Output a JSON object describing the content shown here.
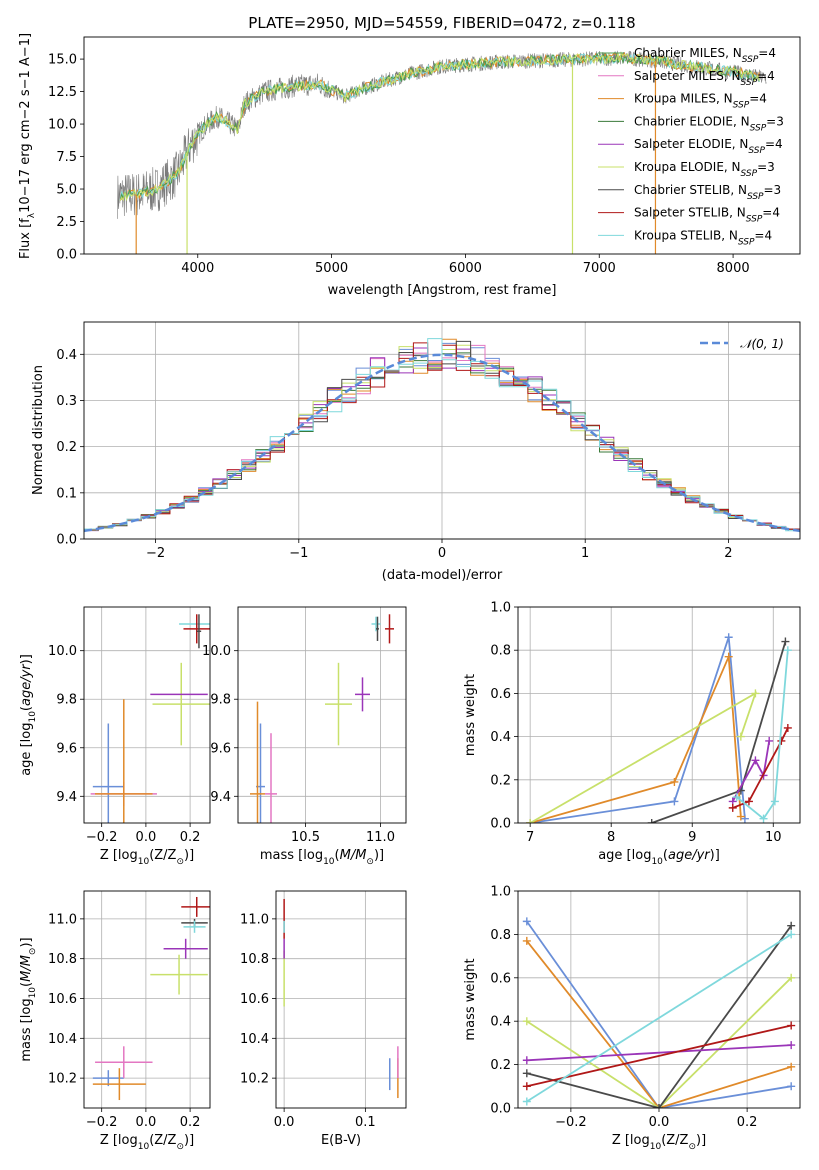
{
  "colors": {
    "Chabrier MILES": "#4c9b4c",
    "Salpeter MILES": "#e377c2",
    "Kroupa MILES": "#e08a2a",
    "Chabrier ELODIE": "#3a7a3a",
    "Salpeter ELODIE": "#9a35b8",
    "Kroupa ELODIE": "#c8e06a",
    "Chabrier STELIB": "#4a4a4a",
    "Salpeter STELIB": "#b01818",
    "Kroupa STELIB": "#7fd8dc",
    "blue": "#6a8fd8",
    "gaussian": "#5a8ad8",
    "spectrum": "#7a7a7a"
  },
  "chart_data": [
    {
      "id": "spectrum",
      "type": "line",
      "title": "PLATE=2950, MJD=54559, FIBERID=0472, z=0.118",
      "xlabel": "wavelength [Angstrom, rest frame]",
      "ylabel": "Flux [f$_\\lambda$10$^{-17}$ erg cm$^{-2}$ s$^{-1}$ A$^{-1}$]",
      "xlim": [
        3150,
        8500
      ],
      "ylim": [
        0,
        16.7
      ],
      "xticks": [
        "4000",
        "5000",
        "6000",
        "7000",
        "8000"
      ],
      "yticks": [
        "0.0",
        "2.5",
        "5.0",
        "7.5",
        "10.0",
        "12.5",
        "15.0"
      ],
      "continuum": [
        [
          3400,
          4.5
        ],
        [
          3550,
          4.6
        ],
        [
          3700,
          5.0
        ],
        [
          3850,
          6.2
        ],
        [
          3950,
          8.5
        ],
        [
          4050,
          9.8
        ],
        [
          4150,
          10.6
        ],
        [
          4300,
          9.6
        ],
        [
          4350,
          11.6
        ],
        [
          4500,
          12.5
        ],
        [
          4700,
          12.9
        ],
        [
          4900,
          13.1
        ],
        [
          5100,
          12.1
        ],
        [
          5200,
          12.6
        ],
        [
          5400,
          13.3
        ],
        [
          5600,
          13.9
        ],
        [
          5800,
          14.4
        ],
        [
          6000,
          14.6
        ],
        [
          6300,
          14.8
        ],
        [
          6600,
          14.9
        ],
        [
          6900,
          15.0
        ],
        [
          7200,
          15.1
        ],
        [
          7400,
          14.9
        ],
        [
          7600,
          14.6
        ],
        [
          7800,
          14.3
        ],
        [
          8000,
          14.0
        ],
        [
          8250,
          13.5
        ]
      ],
      "legend": [
        {
          "label": "Chabrier MILES, N$_{SSP}$=4",
          "text_a": "Chabrier MILES, N",
          "sub": "SSP",
          "text_b": "=4"
        },
        {
          "label": "Salpeter MILES, N$_{SSP}$=4",
          "text_a": "Salpeter MILES, N",
          "sub": "SSP",
          "text_b": "=4"
        },
        {
          "label": "Kroupa MILES, N$_{SSP}$=4",
          "text_a": "Kroupa MILES, N",
          "sub": "SSP",
          "text_b": "=4"
        },
        {
          "label": "Chabrier ELODIE, N$_{SSP}$=3",
          "text_a": "Chabrier ELODIE, N",
          "sub": "SSP",
          "text_b": "=3"
        },
        {
          "label": "Salpeter ELODIE, N$_{SSP}$=4",
          "text_a": "Salpeter ELODIE, N",
          "sub": "SSP",
          "text_b": "=4"
        },
        {
          "label": "Kroupa ELODIE, N$_{SSP}$=3",
          "text_a": "Kroupa ELODIE, N",
          "sub": "SSP",
          "text_b": "=3"
        },
        {
          "label": "Chabrier STELIB, N$_{SSP}$=3",
          "text_a": "Chabrier STELIB, N",
          "sub": "SSP",
          "text_b": "=3"
        },
        {
          "label": "Salpeter STELIB, N$_{SSP}$=4",
          "text_a": "Salpeter STELIB, N",
          "sub": "SSP",
          "text_b": "=4"
        },
        {
          "label": "Kroupa STELIB, N$_{SSP}$=4",
          "text_a": "Kroupa STELIB, N",
          "sub": "SSP",
          "text_b": "=4"
        }
      ],
      "legend_placement": "upper-right",
      "grid": false
    },
    {
      "id": "residuals",
      "type": "histogram",
      "xlabel": "(data-model)/error",
      "ylabel": "Normed distribution",
      "xlim": [
        -2.5,
        2.5
      ],
      "ylim": [
        0,
        0.47
      ],
      "xticks": [
        "−2",
        "−1",
        "0",
        "1",
        "2"
      ],
      "yticks": [
        "0.0",
        "0.1",
        "0.2",
        "0.3",
        "0.4"
      ],
      "bin_width": 0.1,
      "gaussian_label": "𝒩(0, 1)",
      "grid": true,
      "legend_placement": "upper-right"
    },
    {
      "id": "age_vs_Z",
      "type": "errorbar",
      "xlabel": "Z [log$_{10}$(Z/Z$_\\odot$)]",
      "xlabel_a": "Z [log",
      "xlabel_b": "(Z/Z",
      "xlabel_c": ")]",
      "ylabel": "age [log$_{10}$(age/yr)]",
      "ylabel_a": "age  [log",
      "ylabel_b": "(age/yr)]",
      "xlim": [
        -0.28,
        0.29
      ],
      "ylim": [
        9.29,
        10.18
      ],
      "xticks": [
        "−0.2",
        "0.0",
        "0.2"
      ],
      "yticks": [
        "9.4",
        "9.6",
        "9.8",
        "10.0"
      ],
      "grid": true,
      "points": [
        {
          "series": "blue",
          "x": -0.17,
          "xerr": 0.07,
          "y": 9.44,
          "yerr": 0.26
        },
        {
          "series": "Salpeter MILES",
          "x": -0.1,
          "xerr": 0.15,
          "y": 9.41,
          "yerr": 0.05
        },
        {
          "series": "Kroupa MILES",
          "x": -0.1,
          "xerr": 0.13,
          "y": 9.41,
          "yerr": 0.39
        },
        {
          "series": "Kroupa ELODIE",
          "x": 0.16,
          "xerr": 0.13,
          "y": 9.78,
          "yerr": 0.17
        },
        {
          "series": "Salpeter ELODIE",
          "x": 0.15,
          "xerr": 0.13,
          "y": 9.82,
          "yerr": 0.0
        },
        {
          "series": "Kroupa STELIB",
          "x": 0.22,
          "xerr": 0.07,
          "y": 10.11,
          "yerr": 0.0
        },
        {
          "series": "Salpeter STELIB",
          "x": 0.23,
          "xerr": 0.06,
          "y": 10.09,
          "yerr": 0.06
        },
        {
          "series": "Chabrier STELIB",
          "x": 0.24,
          "xerr": 0.01,
          "y": 10.08,
          "yerr": 0.07
        }
      ]
    },
    {
      "id": "age_vs_mass",
      "type": "errorbar",
      "xlabel": "mass [log$_{10}$(M/M$_\\odot$)]",
      "xlabel_a": "mass [log",
      "xlabel_b": "(M/M",
      "xlabel_c": ")]",
      "xlim": [
        10.05,
        11.17
      ],
      "ylim": [
        9.29,
        10.18
      ],
      "xticks": [
        "10.5",
        "11.0"
      ],
      "yticks": [
        "9.4",
        "9.6",
        "9.8",
        "10.0"
      ],
      "grid": true,
      "points": [
        {
          "series": "blue",
          "x": 10.2,
          "xerr": 0.03,
          "y": 9.44,
          "yerr": 0.26
        },
        {
          "series": "Salpeter MILES",
          "x": 10.27,
          "xerr": 0.04,
          "y": 9.41,
          "yerr": 0.25
        },
        {
          "series": "Kroupa MILES",
          "x": 10.18,
          "xerr": 0.05,
          "y": 9.41,
          "yerr": 0.38
        },
        {
          "series": "Kroupa ELODIE",
          "x": 10.72,
          "xerr": 0.09,
          "y": 9.78,
          "yerr": 0.17
        },
        {
          "series": "Salpeter ELODIE",
          "x": 10.88,
          "xerr": 0.05,
          "y": 9.82,
          "yerr": 0.07
        },
        {
          "series": "Kroupa STELIB",
          "x": 10.97,
          "xerr": 0.03,
          "y": 10.11,
          "yerr": 0.03
        },
        {
          "series": "Chabrier STELIB",
          "x": 10.98,
          "xerr": 0.01,
          "y": 10.09,
          "yerr": 0.05
        },
        {
          "series": "Salpeter STELIB",
          "x": 11.06,
          "xerr": 0.03,
          "y": 10.09,
          "yerr": 0.06
        }
      ]
    },
    {
      "id": "mass_weight_vs_age",
      "type": "line",
      "xlabel": "age  [log$_{10}$(age/yr)]",
      "xlabel_a": "age  [log",
      "xlabel_b": "(age/yr)]",
      "ylabel": "mass weight",
      "xlim": [
        6.85,
        10.33
      ],
      "ylim": [
        0,
        1.0
      ],
      "xticks": [
        "7",
        "8",
        "9",
        "10"
      ],
      "yticks": [
        "0.0",
        "0.2",
        "0.4",
        "0.6",
        "0.8",
        "1.0"
      ],
      "grid": true,
      "series": [
        {
          "name": "blue",
          "points": [
            [
              7.0,
              0.0
            ],
            [
              8.78,
              0.1
            ],
            [
              9.45,
              0.86
            ],
            [
              9.65,
              0.02
            ]
          ]
        },
        {
          "name": "Kroupa MILES",
          "points": [
            [
              7.0,
              0.0
            ],
            [
              8.78,
              0.19
            ],
            [
              9.45,
              0.77
            ],
            [
              9.6,
              0.03
            ]
          ]
        },
        {
          "name": "Kroupa ELODIE",
          "points": [
            [
              7.0,
              0.0
            ],
            [
              9.78,
              0.6
            ],
            [
              9.6,
              0.4
            ]
          ]
        },
        {
          "name": "Chabrier STELIB",
          "points": [
            [
              8.5,
              0.0
            ],
            [
              9.6,
              0.15
            ],
            [
              10.15,
              0.84
            ]
          ]
        },
        {
          "name": "Salpeter ELODIE",
          "points": [
            [
              9.5,
              0.1
            ],
            [
              9.78,
              0.29
            ],
            [
              9.88,
              0.22
            ],
            [
              9.95,
              0.38
            ]
          ]
        },
        {
          "name": "Salpeter STELIB",
          "points": [
            [
              9.5,
              0.07
            ],
            [
              9.7,
              0.1
            ],
            [
              10.1,
              0.38
            ],
            [
              10.18,
              0.44
            ]
          ]
        },
        {
          "name": "Kroupa STELIB",
          "points": [
            [
              9.55,
              0.12
            ],
            [
              9.88,
              0.02
            ],
            [
              10.02,
              0.1
            ],
            [
              10.18,
              0.8
            ]
          ]
        }
      ]
    },
    {
      "id": "mass_vs_Z",
      "type": "errorbar",
      "xlabel": "Z [log$_{10}$(Z/Z$_\\odot$)]",
      "xlabel_a": "Z [log",
      "xlabel_b": "(Z/Z",
      "xlabel_c": ")]",
      "ylabel": "mass [log$_{10}$(M/M$_\\odot$)]",
      "ylabel_a": "mass [log",
      "ylabel_b": "(M/M",
      "ylabel_c": ")]",
      "xlim": [
        -0.28,
        0.29
      ],
      "ylim": [
        10.05,
        11.14
      ],
      "xticks": [
        "−0.2",
        "0.0",
        "0.2"
      ],
      "yticks": [
        "10.2",
        "10.4",
        "10.6",
        "10.8",
        "11.0"
      ],
      "grid": true,
      "points": [
        {
          "series": "blue",
          "x": -0.17,
          "xerr": 0.07,
          "y": 10.2,
          "yerr": 0.04
        },
        {
          "series": "Salpeter MILES",
          "x": -0.1,
          "xerr": 0.13,
          "y": 10.28,
          "yerr": 0.08
        },
        {
          "series": "Kroupa MILES",
          "x": -0.12,
          "xerr": 0.12,
          "y": 10.17,
          "yerr": 0.08
        },
        {
          "series": "Kroupa ELODIE",
          "x": 0.15,
          "xerr": 0.13,
          "y": 10.72,
          "yerr": 0.1
        },
        {
          "series": "Salpeter ELODIE",
          "x": 0.18,
          "xerr": 0.1,
          "y": 10.85,
          "yerr": 0.05
        },
        {
          "series": "Chabrier STELIB",
          "x": 0.22,
          "xerr": 0.06,
          "y": 10.98,
          "yerr": 0.02
        },
        {
          "series": "Kroupa STELIB",
          "x": 0.22,
          "xerr": 0.05,
          "y": 10.96,
          "yerr": 0.03
        },
        {
          "series": "Salpeter STELIB",
          "x": 0.23,
          "xerr": 0.07,
          "y": 11.06,
          "yerr": 0.05
        }
      ]
    },
    {
      "id": "mass_vs_ebv",
      "type": "errorbar",
      "xlabel": "E(B-V)",
      "xlim": [
        -0.01,
        0.15
      ],
      "ylim": [
        10.05,
        11.14
      ],
      "xticks": [
        "0.0",
        "0.1"
      ],
      "yticks": [
        "10.2",
        "10.4",
        "10.6",
        "10.8",
        "11.0"
      ],
      "grid": true,
      "points": [
        {
          "series": "Kroupa ELODIE",
          "x": 0.0,
          "xerr": 0.0,
          "y": 10.7,
          "yerr": 0.14
        },
        {
          "series": "Salpeter ELODIE",
          "x": 0.0,
          "xerr": 0.0,
          "y": 10.85,
          "yerr": 0.05
        },
        {
          "series": "Salpeter STELIB",
          "x": 0.0,
          "xerr": 0.0,
          "y": 11.0,
          "yerr": 0.1
        },
        {
          "series": "Kroupa STELIB",
          "x": 0.0,
          "xerr": 0.0,
          "y": 10.96,
          "yerr": 0.03
        },
        {
          "series": "blue",
          "x": 0.13,
          "xerr": 0.0,
          "y": 10.22,
          "yerr": 0.08
        },
        {
          "series": "Kroupa MILES",
          "x": 0.14,
          "xerr": 0.0,
          "y": 10.2,
          "yerr": 0.1
        },
        {
          "series": "Salpeter MILES",
          "x": 0.14,
          "xerr": 0.0,
          "y": 10.28,
          "yerr": 0.08
        }
      ]
    },
    {
      "id": "mass_weight_vs_Z",
      "type": "line",
      "xlabel": "Z [log$_{10}$(Z/Z$_\\odot$)]",
      "xlabel_a": "Z [log",
      "xlabel_b": "(Z/Z",
      "xlabel_c": ")]",
      "ylabel": "mass weight",
      "xlim": [
        -0.32,
        0.32
      ],
      "ylim": [
        0,
        1.0
      ],
      "xticks": [
        "−0.2",
        "0.0",
        "0.2"
      ],
      "yticks": [
        "0.0",
        "0.2",
        "0.4",
        "0.6",
        "0.8",
        "1.0"
      ],
      "grid": true,
      "series": [
        {
          "name": "blue",
          "points": [
            [
              -0.3,
              0.86
            ],
            [
              0.0,
              0.0
            ],
            [
              0.3,
              0.1
            ]
          ]
        },
        {
          "name": "Kroupa MILES",
          "points": [
            [
              -0.3,
              0.77
            ],
            [
              0.0,
              0.0
            ],
            [
              0.3,
              0.19
            ]
          ]
        },
        {
          "name": "Kroupa ELODIE",
          "points": [
            [
              -0.3,
              0.4
            ],
            [
              0.0,
              0.0
            ],
            [
              0.3,
              0.6
            ]
          ]
        },
        {
          "name": "Chabrier STELIB",
          "points": [
            [
              -0.3,
              0.16
            ],
            [
              0.0,
              0.0
            ],
            [
              0.3,
              0.84
            ]
          ]
        },
        {
          "name": "Salpeter ELODIE",
          "points": [
            [
              -0.3,
              0.22
            ],
            [
              0.3,
              0.29
            ]
          ]
        },
        {
          "name": "Salpeter STELIB",
          "points": [
            [
              -0.3,
              0.1
            ],
            [
              0.3,
              0.38
            ]
          ]
        },
        {
          "name": "Kroupa STELIB",
          "points": [
            [
              -0.3,
              0.03
            ],
            [
              0.3,
              0.8
            ]
          ]
        }
      ]
    }
  ]
}
